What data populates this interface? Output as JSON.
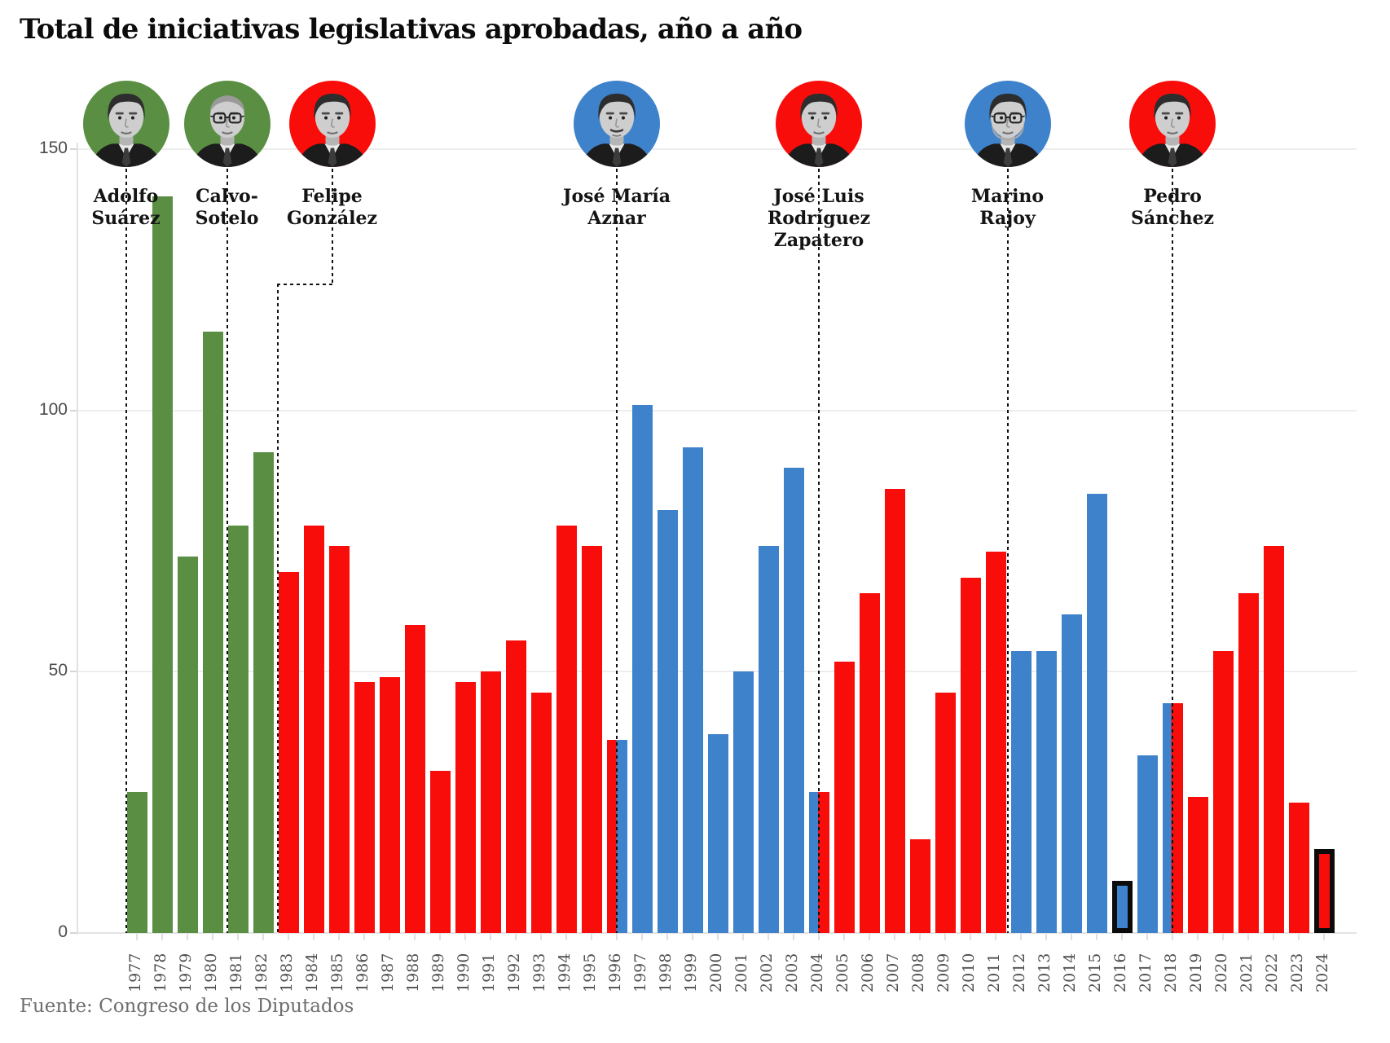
{
  "title": "Total de iniciativas legislativas aprobadas, año a año",
  "source": "Fuente: Congreso de los Diputados",
  "colors": {
    "green": "#5a8e43",
    "red": "#f90d0b",
    "blue": "#3d82cb",
    "outline": "#0b0b0b",
    "grid": "#ededed",
    "axis_text": "#4c4c4c",
    "xlabel_text": "#4f4f4f"
  },
  "y_axis": {
    "ticks": [
      "0",
      "50",
      "100",
      "150"
    ],
    "values": [
      0,
      50,
      100,
      150
    ]
  },
  "presidents": [
    {
      "name": "Adolfo Suárez",
      "lines": [
        "Adolfo",
        "Suárez"
      ],
      "party_color": "green",
      "start_year": 1977,
      "anchor": "bar-left",
      "elbow": false
    },
    {
      "name": "Calvo-Sotelo",
      "lines": [
        "Calvo-",
        "Sotelo"
      ],
      "party_color": "green",
      "start_year": 1981,
      "anchor": "bar-left",
      "elbow": false
    },
    {
      "name": "Felipe González",
      "lines": [
        "Felipe",
        "González"
      ],
      "party_color": "red",
      "start_year": 1983,
      "anchor": "bar-left",
      "elbow": true,
      "photo_offset": 67,
      "face": {}
    },
    {
      "name": "José María Aznar",
      "lines": [
        "José María",
        "Aznar"
      ],
      "party_color": "blue",
      "start_year": 1996,
      "anchor": "bar-center",
      "elbow": false,
      "face": {
        "mustache": true
      }
    },
    {
      "name": "José Luis Rodríguez Zapatero",
      "lines": [
        "José Luis",
        "Rodríguez",
        "Zapatero"
      ],
      "party_color": "red",
      "start_year": 2004,
      "anchor": "bar-center",
      "elbow": false
    },
    {
      "name": "Marino Rajoy",
      "lines": [
        "Marino",
        "Rajoy"
      ],
      "party_color": "blue",
      "start_year": 2012,
      "anchor": "gap-left",
      "elbow": false,
      "face": {
        "glasses": true,
        "beard": true
      }
    },
    {
      "name": "Pedro Sánchez",
      "lines": [
        "Pedro",
        "Sánchez"
      ],
      "party_color": "red",
      "start_year": 2018,
      "anchor": "bar-center",
      "elbow": false
    }
  ],
  "president_faces": {
    "Adolfo Suárez": {},
    "Calvo-Sotelo": {
      "glasses": true,
      "bald": true
    },
    "Felipe González": {},
    "José María Aznar": {
      "mustache": true
    },
    "José Luis Rodríguez Zapatero": {},
    "Marino Rajoy": {
      "glasses": true,
      "beard": true
    },
    "Pedro Sánchez": {}
  },
  "chart_data": {
    "type": "bar",
    "title": "Total de iniciativas legislativas aprobadas, año a año",
    "xlabel": "",
    "ylabel": "",
    "ylim": [
      0,
      150
    ],
    "grid": true,
    "categories": [
      1977,
      1978,
      1979,
      1980,
      1981,
      1982,
      1983,
      1984,
      1985,
      1986,
      1987,
      1988,
      1989,
      1990,
      1991,
      1992,
      1993,
      1994,
      1995,
      1996,
      1997,
      1998,
      1999,
      2000,
      2001,
      2002,
      2003,
      2004,
      2005,
      2006,
      2007,
      2008,
      2009,
      2010,
      2011,
      2012,
      2013,
      2014,
      2015,
      2016,
      2017,
      2018,
      2019,
      2020,
      2021,
      2022,
      2023,
      2024
    ],
    "values": [
      27,
      141,
      72,
      115,
      78,
      92,
      69,
      78,
      74,
      48,
      49,
      59,
      31,
      48,
      50,
      56,
      46,
      78,
      74,
      37,
      101,
      81,
      93,
      38,
      50,
      74,
      89,
      27,
      52,
      65,
      85,
      18,
      46,
      68,
      73,
      54,
      54,
      61,
      84,
      10,
      34,
      44,
      26,
      54,
      65,
      74,
      25,
      16
    ],
    "bar_colors": [
      "green",
      "green",
      "green",
      "green",
      "green",
      "green",
      "red",
      "red",
      "red",
      "red",
      "red",
      "red",
      "red",
      "red",
      "red",
      "red",
      "red",
      "red",
      "red",
      "split-red-blue",
      "blue",
      "blue",
      "blue",
      "blue",
      "blue",
      "blue",
      "blue",
      "split-blue-red",
      "red",
      "red",
      "red",
      "red",
      "red",
      "red",
      "red",
      "blue",
      "blue",
      "blue",
      "blue",
      "blue",
      "blue",
      "split-blue-red",
      "red",
      "red",
      "red",
      "red",
      "red",
      "red"
    ],
    "split_years": {
      "1996": {
        "left": "red",
        "right": "blue",
        "left_fraction": 0.46
      },
      "2004": {
        "left": "blue",
        "right": "red",
        "left_fraction": 0.45
      },
      "2018": {
        "left": "blue",
        "right": "red",
        "left_fraction": 0.42
      }
    },
    "outlined_years": [
      2016,
      2024
    ],
    "legend_position": "none"
  }
}
